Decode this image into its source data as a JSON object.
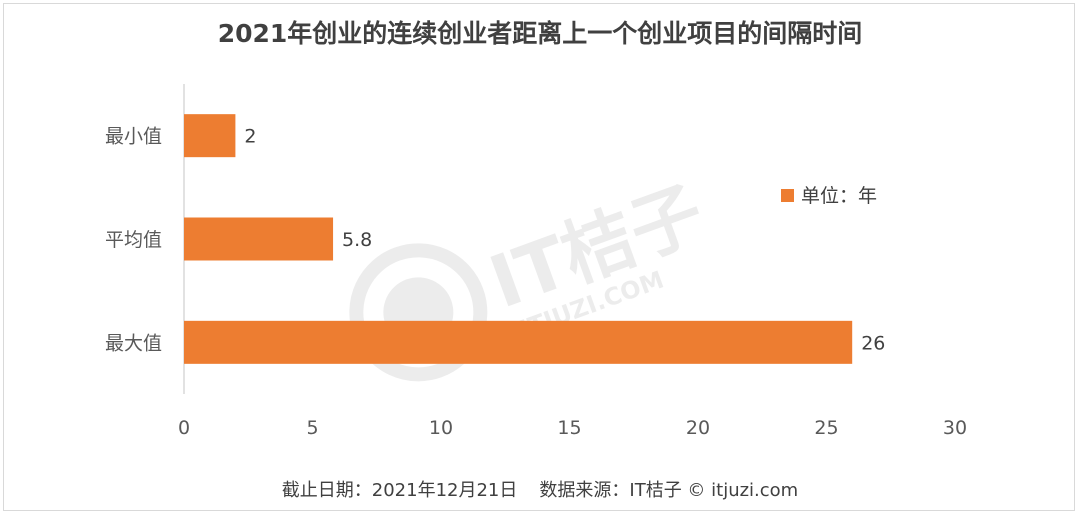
{
  "chart_data": {
    "type": "bar",
    "orientation": "horizontal",
    "title": "2021年创业的连续创业者距离上一个创业项目的间隔时间",
    "categories": [
      "最小值",
      "平均值",
      "最大值"
    ],
    "values": [
      2,
      5.8,
      26
    ],
    "data_labels": [
      "2",
      "5.8",
      "26"
    ],
    "xlim": [
      0,
      30
    ],
    "xticks": [
      0,
      5,
      10,
      15,
      20,
      25,
      30
    ],
    "legend": {
      "label": "单位：年",
      "placement": "right"
    },
    "bar_color": "#ED7D31",
    "grid": false
  },
  "footer": {
    "date": "截止日期：2021年12月21日",
    "source": "数据来源：IT桔子 © itjuzi.com"
  },
  "watermark": {
    "text": "IT桔子",
    "subtext": "ITJUZI.COM"
  },
  "colors": {
    "title": "#404040",
    "axis_text": "#595959",
    "axis_line": "#d9d9d9"
  }
}
